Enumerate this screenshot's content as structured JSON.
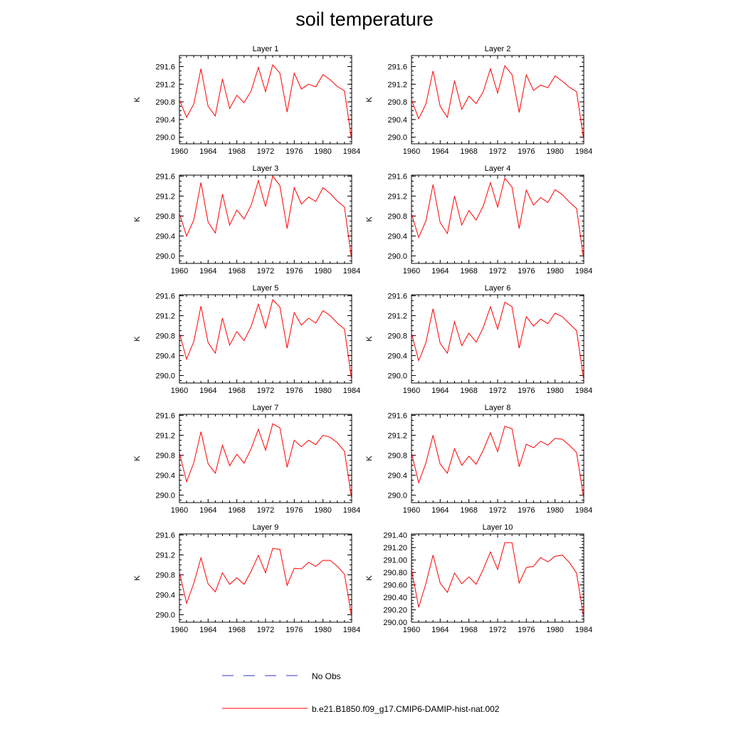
{
  "figure": {
    "title": "soil temperature"
  },
  "colors": {
    "model_line": "#ff0000",
    "obs_line": "#3333cc",
    "axis": "#000000"
  },
  "legend": {
    "obs_label": "No Obs",
    "model_label": "b.e21.B1850.f09_g17.CMIP6-DAMIP-hist-nat.002"
  },
  "chart_data": [
    {
      "type": "line",
      "title": "Layer 1",
      "xlabel": "",
      "ylabel": "K",
      "xlim": [
        1960,
        1984
      ],
      "ylim": [
        289.85,
        291.85
      ],
      "xticks": [
        "1960",
        "1964",
        "1968",
        "1972",
        "1976",
        "1980",
        "1984"
      ],
      "yticks": [
        "290.0",
        "290.4",
        "290.8",
        "291.2",
        "291.6"
      ],
      "x": [
        1960,
        1961,
        1962,
        1963,
        1964,
        1965,
        1966,
        1967,
        1968,
        1969,
        1970,
        1971,
        1972,
        1973,
        1974,
        1975,
        1976,
        1977,
        1978,
        1979,
        1980,
        1981,
        1982,
        1983,
        1984
      ],
      "series": [
        {
          "name": "b.e21.B1850.f09_g17.CMIP6-DAMIP-hist-nat.002",
          "values": [
            290.85,
            290.45,
            290.75,
            291.55,
            290.7,
            290.48,
            291.32,
            290.65,
            290.95,
            290.78,
            291.05,
            291.58,
            291.03,
            291.64,
            291.45,
            290.57,
            291.45,
            291.09,
            291.2,
            291.14,
            291.42,
            291.3,
            291.15,
            291.05,
            289.92
          ]
        }
      ]
    },
    {
      "type": "line",
      "title": "Layer 2",
      "xlabel": "",
      "ylabel": "K",
      "xlim": [
        1960,
        1984
      ],
      "ylim": [
        289.85,
        291.85
      ],
      "xticks": [
        "1960",
        "1964",
        "1968",
        "1972",
        "1976",
        "1980",
        "1984"
      ],
      "yticks": [
        "290.0",
        "290.4",
        "290.8",
        "291.2",
        "291.6"
      ],
      "x": [
        1960,
        1961,
        1962,
        1963,
        1964,
        1965,
        1966,
        1967,
        1968,
        1969,
        1970,
        1971,
        1972,
        1973,
        1974,
        1975,
        1976,
        1977,
        1978,
        1979,
        1980,
        1981,
        1982,
        1983,
        1984
      ],
      "series": [
        {
          "name": "b.e21.B1850.f09_g17.CMIP6-DAMIP-hist-nat.002",
          "values": [
            290.85,
            290.42,
            290.75,
            291.5,
            290.7,
            290.45,
            291.28,
            290.63,
            290.93,
            290.76,
            291.03,
            291.55,
            291.0,
            291.62,
            291.42,
            290.56,
            291.41,
            291.06,
            291.18,
            291.12,
            291.39,
            291.27,
            291.13,
            291.03,
            289.93
          ]
        }
      ]
    },
    {
      "type": "line",
      "title": "Layer 3",
      "xlabel": "",
      "ylabel": "K",
      "xlim": [
        1960,
        1984
      ],
      "ylim": [
        289.85,
        291.62
      ],
      "xticks": [
        "1960",
        "1964",
        "1968",
        "1972",
        "1976",
        "1980",
        "1984"
      ],
      "yticks": [
        "290.0",
        "290.4",
        "290.8",
        "291.2",
        "291.6"
      ],
      "x": [
        1960,
        1961,
        1962,
        1963,
        1964,
        1965,
        1966,
        1967,
        1968,
        1969,
        1970,
        1971,
        1972,
        1973,
        1974,
        1975,
        1976,
        1977,
        1978,
        1979,
        1980,
        1981,
        1982,
        1983,
        1984
      ],
      "series": [
        {
          "name": "b.e21.B1850.f09_g17.CMIP6-DAMIP-hist-nat.002",
          "values": [
            290.85,
            290.4,
            290.72,
            291.47,
            290.68,
            290.46,
            291.24,
            290.62,
            290.92,
            290.74,
            291.02,
            291.51,
            290.99,
            291.6,
            291.41,
            290.55,
            291.37,
            291.04,
            291.18,
            291.09,
            291.37,
            291.25,
            291.1,
            290.98,
            289.93
          ]
        }
      ]
    },
    {
      "type": "line",
      "title": "Layer 4",
      "xlabel": "",
      "ylabel": "K",
      "xlim": [
        1960,
        1984
      ],
      "ylim": [
        289.85,
        291.62
      ],
      "xticks": [
        "1960",
        "1964",
        "1968",
        "1972",
        "1976",
        "1980",
        "1984"
      ],
      "yticks": [
        "290.0",
        "290.4",
        "290.8",
        "291.2",
        "291.6"
      ],
      "x": [
        1960,
        1961,
        1962,
        1963,
        1964,
        1965,
        1966,
        1967,
        1968,
        1969,
        1970,
        1971,
        1972,
        1973,
        1974,
        1975,
        1976,
        1977,
        1978,
        1979,
        1980,
        1981,
        1982,
        1983,
        1984
      ],
      "series": [
        {
          "name": "b.e21.B1850.f09_g17.CMIP6-DAMIP-hist-nat.002",
          "values": [
            290.85,
            290.37,
            290.7,
            291.43,
            290.67,
            290.45,
            291.2,
            290.62,
            290.91,
            290.72,
            291.0,
            291.47,
            290.98,
            291.56,
            291.38,
            290.55,
            291.32,
            291.02,
            291.17,
            291.07,
            291.33,
            291.23,
            291.08,
            290.95,
            289.93
          ]
        }
      ]
    },
    {
      "type": "line",
      "title": "Layer 5",
      "xlabel": "",
      "ylabel": "K",
      "xlim": [
        1960,
        1984
      ],
      "ylim": [
        289.85,
        291.62
      ],
      "xticks": [
        "1960",
        "1964",
        "1968",
        "1972",
        "1976",
        "1980",
        "1984"
      ],
      "yticks": [
        "290.0",
        "290.4",
        "290.8",
        "291.2",
        "291.6"
      ],
      "x": [
        1960,
        1961,
        1962,
        1963,
        1964,
        1965,
        1966,
        1967,
        1968,
        1969,
        1970,
        1971,
        1972,
        1973,
        1974,
        1975,
        1976,
        1977,
        1978,
        1979,
        1980,
        1981,
        1982,
        1983,
        1984
      ],
      "series": [
        {
          "name": "b.e21.B1850.f09_g17.CMIP6-DAMIP-hist-nat.002",
          "values": [
            290.85,
            290.33,
            290.68,
            291.39,
            290.66,
            290.45,
            291.15,
            290.61,
            290.88,
            290.7,
            290.98,
            291.43,
            290.95,
            291.52,
            291.37,
            290.55,
            291.26,
            291.01,
            291.15,
            291.05,
            291.3,
            291.2,
            291.05,
            290.93,
            289.9
          ]
        }
      ]
    },
    {
      "type": "line",
      "title": "Layer 6",
      "xlabel": "",
      "ylabel": "K",
      "xlim": [
        1960,
        1984
      ],
      "ylim": [
        289.85,
        291.62
      ],
      "xticks": [
        "1960",
        "1964",
        "1968",
        "1972",
        "1976",
        "1980",
        "1984"
      ],
      "yticks": [
        "290.0",
        "290.4",
        "290.8",
        "291.2",
        "291.6"
      ],
      "x": [
        1960,
        1961,
        1962,
        1963,
        1964,
        1965,
        1966,
        1967,
        1968,
        1969,
        1970,
        1971,
        1972,
        1973,
        1974,
        1975,
        1976,
        1977,
        1978,
        1979,
        1980,
        1981,
        1982,
        1983,
        1984
      ],
      "series": [
        {
          "name": "b.e21.B1850.f09_g17.CMIP6-DAMIP-hist-nat.002",
          "values": [
            290.85,
            290.3,
            290.66,
            291.34,
            290.65,
            290.45,
            291.08,
            290.6,
            290.85,
            290.67,
            290.96,
            291.38,
            290.93,
            291.47,
            291.38,
            290.55,
            291.18,
            290.99,
            291.13,
            291.04,
            291.25,
            291.18,
            291.04,
            290.9,
            289.9
          ]
        }
      ]
    },
    {
      "type": "line",
      "title": "Layer 7",
      "xlabel": "",
      "ylabel": "K",
      "xlim": [
        1960,
        1984
      ],
      "ylim": [
        289.85,
        291.62
      ],
      "xticks": [
        "1960",
        "1964",
        "1968",
        "1972",
        "1976",
        "1980",
        "1984"
      ],
      "yticks": [
        "290.0",
        "290.4",
        "290.8",
        "291.2",
        "291.6"
      ],
      "x": [
        1960,
        1961,
        1962,
        1963,
        1964,
        1965,
        1966,
        1967,
        1968,
        1969,
        1970,
        1971,
        1972,
        1973,
        1974,
        1975,
        1976,
        1977,
        1978,
        1979,
        1980,
        1981,
        1982,
        1983,
        1984
      ],
      "series": [
        {
          "name": "b.e21.B1850.f09_g17.CMIP6-DAMIP-hist-nat.002",
          "values": [
            290.85,
            290.27,
            290.65,
            291.27,
            290.63,
            290.44,
            291.0,
            290.59,
            290.82,
            290.64,
            290.93,
            291.32,
            290.9,
            291.43,
            291.35,
            290.56,
            291.1,
            290.97,
            291.1,
            291.01,
            291.2,
            291.16,
            291.05,
            290.88,
            289.92
          ]
        }
      ]
    },
    {
      "type": "line",
      "title": "Layer 8",
      "xlabel": "",
      "ylabel": "K",
      "xlim": [
        1960,
        1984
      ],
      "ylim": [
        289.85,
        291.62
      ],
      "xticks": [
        "1960",
        "1964",
        "1968",
        "1972",
        "1976",
        "1980",
        "1984"
      ],
      "yticks": [
        "290.0",
        "290.4",
        "290.8",
        "291.2",
        "291.6"
      ],
      "x": [
        1960,
        1961,
        1962,
        1963,
        1964,
        1965,
        1966,
        1967,
        1968,
        1969,
        1970,
        1971,
        1972,
        1973,
        1974,
        1975,
        1976,
        1977,
        1978,
        1979,
        1980,
        1981,
        1982,
        1983,
        1984
      ],
      "series": [
        {
          "name": "b.e21.B1850.f09_g17.CMIP6-DAMIP-hist-nat.002",
          "values": [
            290.85,
            290.25,
            290.64,
            291.2,
            290.62,
            290.44,
            290.93,
            290.6,
            290.78,
            290.62,
            290.9,
            291.25,
            290.87,
            291.38,
            291.33,
            290.57,
            291.02,
            290.95,
            291.08,
            291.0,
            291.14,
            291.12,
            291.0,
            290.85,
            289.93
          ]
        }
      ]
    },
    {
      "type": "line",
      "title": "Layer 9",
      "xlabel": "",
      "ylabel": "K",
      "xlim": [
        1960,
        1984
      ],
      "ylim": [
        289.85,
        291.62
      ],
      "xticks": [
        "1960",
        "1964",
        "1968",
        "1972",
        "1976",
        "1980",
        "1984"
      ],
      "yticks": [
        "290.0",
        "290.4",
        "290.8",
        "291.2",
        "291.6"
      ],
      "x": [
        1960,
        1961,
        1962,
        1963,
        1964,
        1965,
        1966,
        1967,
        1968,
        1969,
        1970,
        1971,
        1972,
        1973,
        1974,
        1975,
        1976,
        1977,
        1978,
        1979,
        1980,
        1981,
        1982,
        1983,
        1984
      ],
      "series": [
        {
          "name": "b.e21.B1850.f09_g17.CMIP6-DAMIP-hist-nat.002",
          "values": [
            290.85,
            290.23,
            290.63,
            291.14,
            290.62,
            290.46,
            290.84,
            290.61,
            290.74,
            290.61,
            290.87,
            291.19,
            290.84,
            291.33,
            291.31,
            290.59,
            290.93,
            290.92,
            291.05,
            290.97,
            291.09,
            291.09,
            290.97,
            290.81,
            289.95
          ]
        }
      ]
    },
    {
      "type": "line",
      "title": "Layer 10",
      "xlabel": "",
      "ylabel": "K",
      "xlim": [
        1960,
        1984
      ],
      "ylim": [
        290.0,
        291.42
      ],
      "xticks": [
        "1960",
        "1964",
        "1968",
        "1972",
        "1976",
        "1980",
        "1984"
      ],
      "yticks": [
        "290.00",
        "290.20",
        "290.40",
        "290.60",
        "290.80",
        "291.00",
        "291.20",
        "291.40"
      ],
      "x": [
        1960,
        1961,
        1962,
        1963,
        1964,
        1965,
        1966,
        1967,
        1968,
        1969,
        1970,
        1971,
        1972,
        1973,
        1974,
        1975,
        1976,
        1977,
        1978,
        1979,
        1980,
        1981,
        1982,
        1983,
        1984
      ],
      "series": [
        {
          "name": "b.e21.B1850.f09_g17.CMIP6-DAMIP-hist-nat.002",
          "values": [
            290.85,
            290.24,
            290.62,
            291.08,
            290.63,
            290.48,
            290.79,
            290.62,
            290.73,
            290.61,
            290.85,
            291.13,
            290.85,
            291.28,
            291.28,
            290.63,
            290.88,
            290.9,
            291.04,
            290.97,
            291.06,
            291.08,
            290.96,
            290.79,
            290.07
          ]
        }
      ]
    }
  ]
}
